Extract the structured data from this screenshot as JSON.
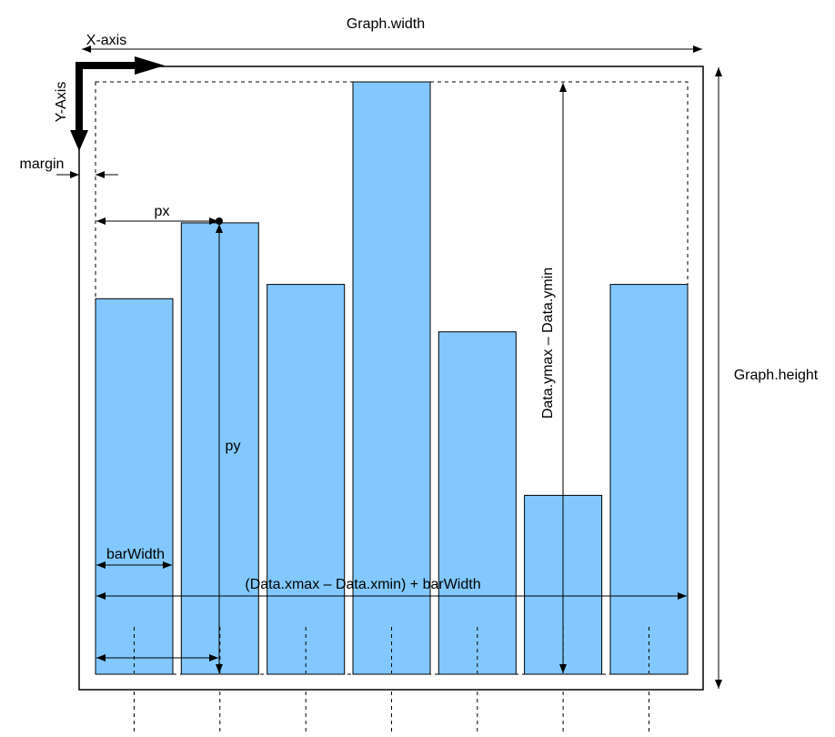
{
  "labels": {
    "graph_width": "Graph.width",
    "x_axis": "X-axis",
    "y_axis": "Y-Axis",
    "margin": "margin",
    "px": "px",
    "py": "py",
    "bar_width": "barWidth",
    "x_span": "(Data.xmax – Data.xmin) + barWidth",
    "y_span": "Data.ymax – Data.ymin",
    "graph_height": "Graph.height"
  },
  "bars": {
    "relative_heights": [
      0.634,
      0.762,
      0.658,
      1.0,
      0.578,
      0.302,
      0.658
    ]
  },
  "colors": {
    "bar_fill": "#82c8ff",
    "stroke": "#000000",
    "background": "#ffffff"
  }
}
